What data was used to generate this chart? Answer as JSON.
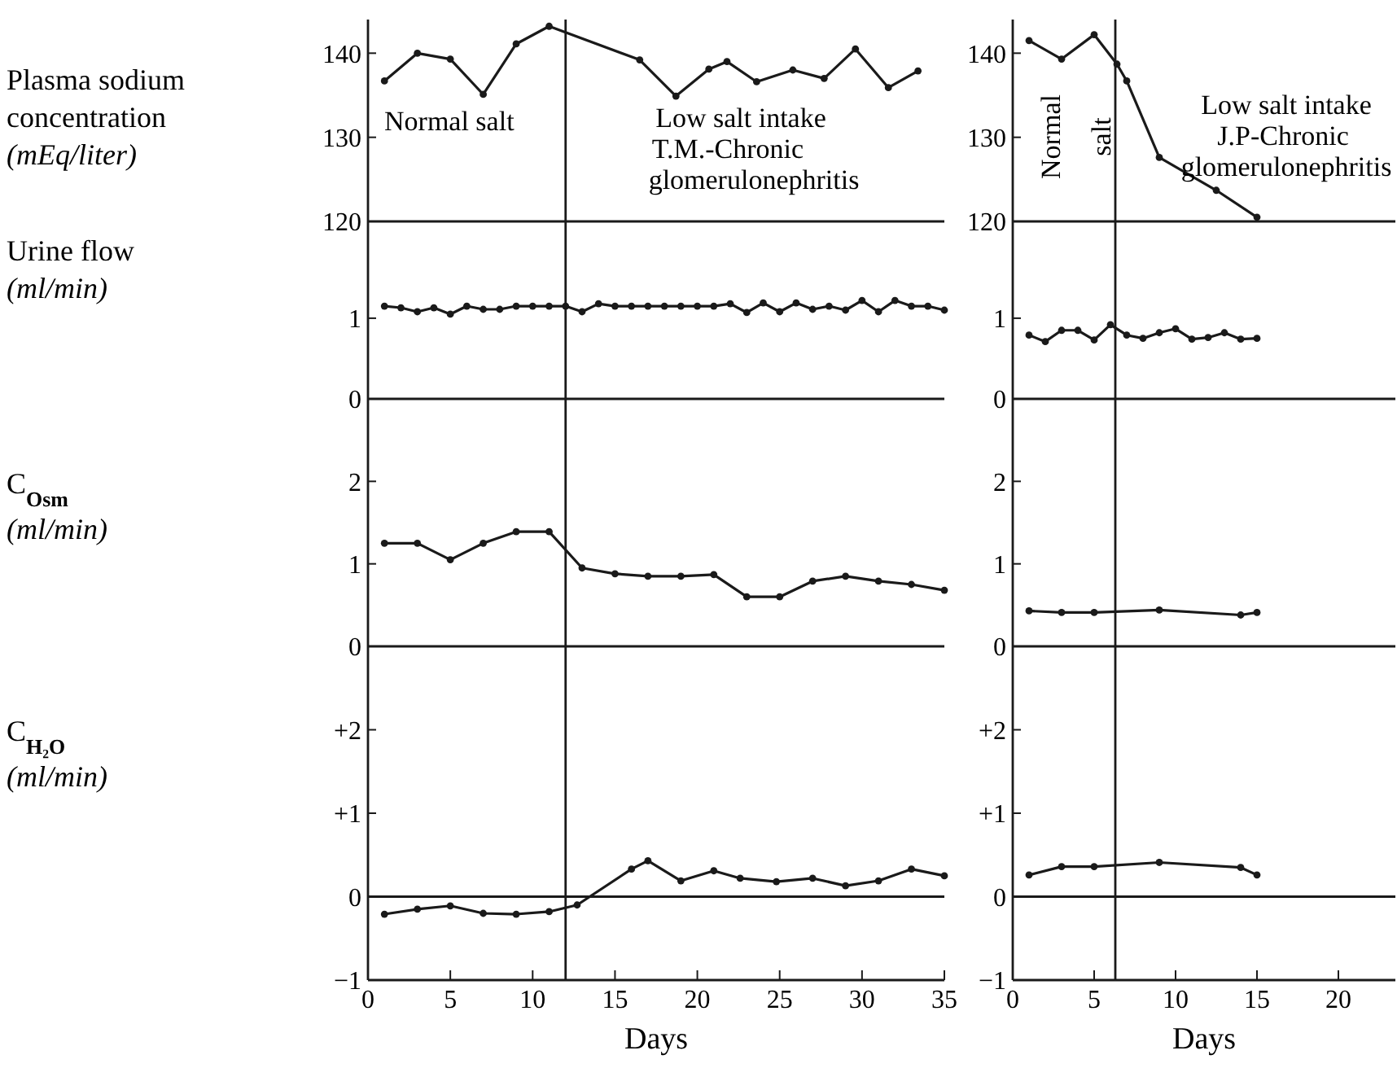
{
  "chart_data": [
    {
      "type": "line",
      "ylabel": "Plasma sodium concentration (mEq/liter)",
      "x": [
        1,
        3,
        5,
        7,
        9,
        11,
        16.5,
        18.7,
        20.7,
        21.8,
        23.6,
        25.8,
        27.7,
        29.6,
        31.6,
        33.4
      ],
      "values": [
        136.7,
        140,
        139.3,
        135.1,
        141.1,
        143.2,
        139.2,
        134.9,
        138.1,
        139,
        136.6,
        138,
        137,
        140.5,
        135.9,
        137.9
      ],
      "color": "#1a1a1a",
      "marker": "circle",
      "line_style": "solid",
      "xlim": [
        0,
        35
      ],
      "ylim": [
        120,
        144
      ],
      "yticks": [
        120,
        130,
        140
      ],
      "tick_labels": "y",
      "ref_lines": [
        {
          "axis": "x",
          "value": 12
        }
      ],
      "annotations": [
        "Normal salt",
        "Low salt intake",
        "T.M.-Chronic",
        "glomerulonephritis"
      ]
    },
    {
      "type": "line",
      "x": [
        1,
        3,
        5,
        6.4,
        7,
        9,
        12.5,
        15
      ],
      "values": [
        141.5,
        139.3,
        142.2,
        138.7,
        136.7,
        127.6,
        123.7,
        120.5
      ],
      "color": "#1a1a1a",
      "marker": "circle",
      "line_style": "solid",
      "xlim": [
        0,
        23.5
      ],
      "ylim": [
        120,
        144
      ],
      "yticks": [
        120,
        130,
        140
      ],
      "tick_labels": "y",
      "ref_lines": [
        {
          "axis": "x",
          "value": 6.3
        }
      ],
      "annotations": [
        "Normal",
        "salt",
        "Low salt intake",
        "J.P-Chronic",
        "glomerulonephritis"
      ]
    },
    {
      "type": "line",
      "ylabel": "Urine flow (ml/min)",
      "x": [
        1,
        2,
        3,
        4,
        5,
        6,
        7,
        8,
        9,
        10,
        11,
        12,
        13,
        14,
        15,
        16,
        17,
        18,
        19,
        20,
        21,
        22,
        23,
        24,
        25,
        26,
        27,
        28,
        29,
        30,
        31,
        32,
        33,
        34,
        35
      ],
      "values": [
        1.15,
        1.13,
        1.08,
        1.13,
        1.05,
        1.15,
        1.11,
        1.11,
        1.15,
        1.15,
        1.15,
        1.15,
        1.08,
        1.18,
        1.15,
        1.15,
        1.15,
        1.15,
        1.15,
        1.15,
        1.15,
        1.18,
        1.07,
        1.19,
        1.08,
        1.19,
        1.11,
        1.15,
        1.1,
        1.22,
        1.08,
        1.22,
        1.15,
        1.15,
        1.1
      ],
      "color": "#1a1a1a",
      "marker": "circle",
      "line_style": "solid",
      "xlim": [
        0,
        35
      ],
      "ylim": [
        0,
        2.2
      ],
      "yticks": [
        0,
        1
      ],
      "tick_labels": "y",
      "ref_lines": [
        {
          "axis": "x",
          "value": 12
        }
      ]
    },
    {
      "type": "line",
      "x": [
        1,
        2,
        3,
        4,
        5,
        6,
        7,
        8,
        9,
        10,
        11,
        12,
        13,
        14,
        15
      ],
      "values": [
        0.79,
        0.71,
        0.85,
        0.85,
        0.73,
        0.92,
        0.79,
        0.75,
        0.82,
        0.87,
        0.74,
        0.76,
        0.82,
        0.74,
        0.75
      ],
      "color": "#1a1a1a",
      "marker": "circle",
      "line_style": "solid",
      "xlim": [
        0,
        23.5
      ],
      "ylim": [
        0,
        2.2
      ],
      "yticks": [
        0,
        1
      ],
      "tick_labels": "y",
      "ref_lines": [
        {
          "axis": "x",
          "value": 6.3
        }
      ]
    },
    {
      "type": "line",
      "ylabel": "C$_{Osm}$ (ml/min)",
      "x": [
        1,
        3,
        5,
        7,
        9,
        11,
        13,
        15,
        17,
        19,
        21,
        23,
        25,
        27,
        29,
        31,
        33,
        35
      ],
      "values": [
        1.25,
        1.25,
        1.05,
        1.25,
        1.39,
        1.39,
        0.95,
        0.88,
        0.85,
        0.85,
        0.87,
        0.6,
        0.6,
        0.79,
        0.85,
        0.79,
        0.75,
        0.68
      ],
      "color": "#1a1a1a",
      "marker": "circle",
      "line_style": "solid",
      "xlim": [
        0,
        35
      ],
      "ylim": [
        0,
        3
      ],
      "yticks": [
        0,
        1,
        2
      ],
      "tick_labels": "y",
      "ref_lines": [
        {
          "axis": "x",
          "value": 12
        }
      ]
    },
    {
      "type": "line",
      "x": [
        1,
        3,
        5,
        9,
        14,
        15
      ],
      "values": [
        0.43,
        0.41,
        0.41,
        0.44,
        0.38,
        0.41
      ],
      "color": "#1a1a1a",
      "marker": "circle",
      "line_style": "solid",
      "xlim": [
        0,
        23.5
      ],
      "ylim": [
        0,
        3
      ],
      "yticks": [
        0,
        1,
        2
      ],
      "tick_labels": "y",
      "ref_lines": [
        {
          "axis": "x",
          "value": 6.3
        }
      ]
    },
    {
      "type": "line",
      "ylabel": "C$_{H₂O}$ (ml/min)",
      "xlabel": "Days",
      "x": [
        1,
        3,
        5,
        7,
        9,
        11,
        12.7,
        16,
        17,
        19,
        21,
        22.6,
        24.8,
        27,
        29,
        31,
        33,
        35
      ],
      "values": [
        -0.21,
        -0.15,
        -0.11,
        -0.2,
        -0.21,
        -0.18,
        -0.1,
        0.33,
        0.43,
        0.19,
        0.31,
        0.22,
        0.18,
        0.22,
        0.13,
        0.19,
        0.33,
        0.25
      ],
      "color": "#1a1a1a",
      "marker": "circle",
      "line_style": "solid",
      "xlim": [
        0,
        35
      ],
      "xticks": [
        0,
        5,
        10,
        15,
        20,
        25,
        30,
        35
      ],
      "ylim": [
        -1,
        3
      ],
      "yticks": [
        {
          "value": -1,
          "label": "−1"
        },
        0,
        {
          "value": 1,
          "label": "+1"
        },
        {
          "value": 2,
          "label": "+2"
        }
      ],
      "ref_lines": [
        {
          "axis": "x",
          "value": 12
        },
        {
          "axis": "y",
          "value": 0
        }
      ]
    },
    {
      "type": "line",
      "xlabel": "Days",
      "x": [
        1,
        3,
        5,
        9,
        14,
        15
      ],
      "values": [
        0.26,
        0.36,
        0.36,
        0.41,
        0.35,
        0.26
      ],
      "color": "#1a1a1a",
      "marker": "circle",
      "line_style": "solid",
      "xlim": [
        0,
        23.5
      ],
      "xticks": [
        0,
        5,
        10,
        15,
        20
      ],
      "ylim": [
        -1,
        3
      ],
      "yticks": [
        {
          "value": -1,
          "label": "−1"
        },
        0,
        {
          "value": 1,
          "label": "+1"
        },
        {
          "value": 2,
          "label": "+2"
        }
      ],
      "ref_lines": [
        {
          "axis": "x",
          "value": 6.3
        },
        {
          "axis": "y",
          "value": 0
        }
      ]
    }
  ]
}
